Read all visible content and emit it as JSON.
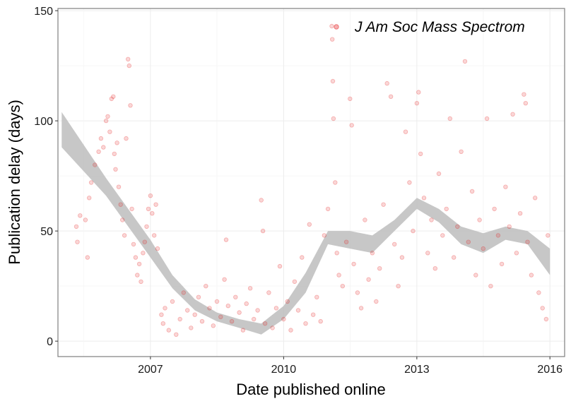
{
  "chart_data": {
    "type": "scatter",
    "title": "",
    "xlabel": "Date published online",
    "ylabel": "Publication delay (days)",
    "xlim": [
      "2004-12-01",
      "2016-05-01"
    ],
    "ylim": [
      -7,
      151
    ],
    "x_ticks": [
      {
        "value": "2007-01-01",
        "label": "2007"
      },
      {
        "value": "2010-01-01",
        "label": "2010"
      },
      {
        "value": "2013-01-01",
        "label": "2013"
      },
      {
        "value": "2016-01-01",
        "label": "2016"
      }
    ],
    "y_ticks": [
      0,
      50,
      100,
      150
    ],
    "y_tick_labels": [
      "0",
      "50",
      "100",
      "150"
    ],
    "grid": true,
    "legend": {
      "position": "top-right",
      "entries": [
        {
          "name": "J Am Soc Mass Spectrom",
          "color": "#e31a1c"
        }
      ]
    },
    "series": [
      {
        "name": "J Am Soc Mass Spectrom",
        "color": "#e31a1c",
        "opacity": 0.18,
        "points": [
          [
            "2005-05-01",
            52
          ],
          [
            "2005-05-10",
            45
          ],
          [
            "2005-06-01",
            57
          ],
          [
            "2005-07-15",
            55
          ],
          [
            "2005-08-01",
            38
          ],
          [
            "2005-08-15",
            65
          ],
          [
            "2005-09-01",
            72
          ],
          [
            "2005-10-01",
            80
          ],
          [
            "2005-11-01",
            86
          ],
          [
            "2005-11-20",
            92
          ],
          [
            "2005-12-10",
            88
          ],
          [
            "2006-01-01",
            100
          ],
          [
            "2006-01-15",
            102
          ],
          [
            "2006-02-01",
            95
          ],
          [
            "2006-02-15",
            110
          ],
          [
            "2006-03-01",
            111
          ],
          [
            "2006-03-10",
            85
          ],
          [
            "2006-03-20",
            78
          ],
          [
            "2006-04-01",
            90
          ],
          [
            "2006-04-15",
            70
          ],
          [
            "2006-05-01",
            62
          ],
          [
            "2006-05-15",
            55
          ],
          [
            "2006-06-01",
            48
          ],
          [
            "2006-06-15",
            92
          ],
          [
            "2006-07-01",
            128
          ],
          [
            "2006-07-10",
            125
          ],
          [
            "2006-07-20",
            107
          ],
          [
            "2006-08-01",
            60
          ],
          [
            "2006-08-15",
            44
          ],
          [
            "2006-09-01",
            38
          ],
          [
            "2006-09-15",
            30
          ],
          [
            "2006-10-01",
            35
          ],
          [
            "2006-10-15",
            27
          ],
          [
            "2006-11-01",
            40
          ],
          [
            "2006-11-15",
            45
          ],
          [
            "2006-12-01",
            52
          ],
          [
            "2006-12-15",
            60
          ],
          [
            "2007-01-01",
            66
          ],
          [
            "2007-01-15",
            58
          ],
          [
            "2007-02-01",
            48
          ],
          [
            "2007-02-15",
            62
          ],
          [
            "2007-03-01",
            42
          ],
          [
            "2007-04-01",
            12
          ],
          [
            "2007-04-15",
            8
          ],
          [
            "2007-05-01",
            15
          ],
          [
            "2007-06-01",
            5
          ],
          [
            "2007-07-01",
            18
          ],
          [
            "2007-08-01",
            3
          ],
          [
            "2007-09-01",
            10
          ],
          [
            "2007-10-01",
            22
          ],
          [
            "2007-11-01",
            14
          ],
          [
            "2007-12-01",
            6
          ],
          [
            "2008-01-01",
            12
          ],
          [
            "2008-02-01",
            20
          ],
          [
            "2008-03-01",
            9
          ],
          [
            "2008-04-01",
            25
          ],
          [
            "2008-05-01",
            15
          ],
          [
            "2008-06-01",
            7
          ],
          [
            "2008-07-01",
            18
          ],
          [
            "2008-08-01",
            11
          ],
          [
            "2008-09-01",
            28
          ],
          [
            "2008-09-15",
            46
          ],
          [
            "2008-10-01",
            16
          ],
          [
            "2008-11-01",
            9
          ],
          [
            "2008-12-01",
            20
          ],
          [
            "2009-01-01",
            13
          ],
          [
            "2009-02-01",
            5
          ],
          [
            "2009-03-01",
            17
          ],
          [
            "2009-04-01",
            24
          ],
          [
            "2009-05-01",
            10
          ],
          [
            "2009-06-01",
            14
          ],
          [
            "2009-07-01",
            64
          ],
          [
            "2009-07-15",
            50
          ],
          [
            "2009-08-01",
            8
          ],
          [
            "2009-09-01",
            22
          ],
          [
            "2009-10-01",
            6
          ],
          [
            "2009-11-01",
            15
          ],
          [
            "2009-12-01",
            34
          ],
          [
            "2010-01-01",
            10
          ],
          [
            "2010-02-01",
            18
          ],
          [
            "2010-03-01",
            5
          ],
          [
            "2010-04-01",
            27
          ],
          [
            "2010-05-01",
            14
          ],
          [
            "2010-06-01",
            38
          ],
          [
            "2010-07-01",
            8
          ],
          [
            "2010-08-01",
            53
          ],
          [
            "2010-09-01",
            12
          ],
          [
            "2010-10-01",
            20
          ],
          [
            "2010-11-01",
            9
          ],
          [
            "2010-12-01",
            48
          ],
          [
            "2011-01-01",
            60
          ],
          [
            "2011-02-01",
            143
          ],
          [
            "2011-02-05",
            137
          ],
          [
            "2011-02-10",
            118
          ],
          [
            "2011-02-15",
            101
          ],
          [
            "2011-03-01",
            72
          ],
          [
            "2011-03-15",
            40
          ],
          [
            "2011-04-01",
            30
          ],
          [
            "2011-05-01",
            25
          ],
          [
            "2011-06-01",
            45
          ],
          [
            "2011-07-01",
            110
          ],
          [
            "2011-07-15",
            98
          ],
          [
            "2011-08-01",
            35
          ],
          [
            "2011-09-01",
            22
          ],
          [
            "2011-10-01",
            15
          ],
          [
            "2011-11-01",
            55
          ],
          [
            "2011-12-01",
            28
          ],
          [
            "2012-01-01",
            40
          ],
          [
            "2012-02-01",
            18
          ],
          [
            "2012-03-01",
            33
          ],
          [
            "2012-04-01",
            62
          ],
          [
            "2012-05-01",
            117
          ],
          [
            "2012-06-01",
            111
          ],
          [
            "2012-07-01",
            44
          ],
          [
            "2012-08-01",
            25
          ],
          [
            "2012-09-01",
            38
          ],
          [
            "2012-10-01",
            95
          ],
          [
            "2012-11-01",
            72
          ],
          [
            "2012-12-01",
            50
          ],
          [
            "2013-01-01",
            108
          ],
          [
            "2013-01-15",
            113
          ],
          [
            "2013-02-01",
            85
          ],
          [
            "2013-03-01",
            65
          ],
          [
            "2013-04-01",
            40
          ],
          [
            "2013-05-01",
            55
          ],
          [
            "2013-06-01",
            33
          ],
          [
            "2013-07-01",
            76
          ],
          [
            "2013-08-01",
            48
          ],
          [
            "2013-09-01",
            60
          ],
          [
            "2013-10-01",
            101
          ],
          [
            "2013-11-01",
            38
          ],
          [
            "2013-12-01",
            52
          ],
          [
            "2014-01-01",
            86
          ],
          [
            "2014-02-01",
            127
          ],
          [
            "2014-03-01",
            45
          ],
          [
            "2014-04-01",
            68
          ],
          [
            "2014-05-01",
            30
          ],
          [
            "2014-06-01",
            55
          ],
          [
            "2014-07-01",
            42
          ],
          [
            "2014-08-01",
            101
          ],
          [
            "2014-09-01",
            25
          ],
          [
            "2014-10-01",
            60
          ],
          [
            "2014-11-01",
            48
          ],
          [
            "2014-12-01",
            35
          ],
          [
            "2015-01-01",
            70
          ],
          [
            "2015-02-01",
            52
          ],
          [
            "2015-03-01",
            103
          ],
          [
            "2015-04-01",
            40
          ],
          [
            "2015-05-01",
            58
          ],
          [
            "2015-06-01",
            112
          ],
          [
            "2015-06-15",
            108
          ],
          [
            "2015-07-01",
            45
          ],
          [
            "2015-08-01",
            30
          ],
          [
            "2015-09-01",
            65
          ],
          [
            "2015-10-01",
            22
          ],
          [
            "2015-11-01",
            15
          ],
          [
            "2015-12-01",
            10
          ],
          [
            "2015-12-15",
            48
          ]
        ]
      }
    ],
    "smooth_band": {
      "color": "#bdbdbd",
      "x": [
        "2005-01-01",
        "2006-01-01",
        "2007-01-01",
        "2007-07-01",
        "2008-01-01",
        "2008-07-01",
        "2009-01-01",
        "2009-07-01",
        "2010-01-01",
        "2010-07-01",
        "2011-01-01",
        "2011-07-01",
        "2012-01-01",
        "2012-07-01",
        "2013-01-01",
        "2013-07-01",
        "2014-01-01",
        "2014-07-01",
        "2015-01-01",
        "2015-07-01",
        "2016-01-01"
      ],
      "lower": [
        88,
        66,
        38,
        24,
        14,
        9,
        6,
        3,
        10,
        22,
        44,
        42,
        40,
        50,
        60,
        54,
        44,
        40,
        46,
        44,
        30
      ],
      "upper": [
        104,
        74,
        46,
        30,
        19,
        13,
        10,
        8,
        16,
        31,
        50,
        50,
        48,
        55,
        65,
        60,
        52,
        49,
        52,
        50,
        42
      ]
    }
  }
}
